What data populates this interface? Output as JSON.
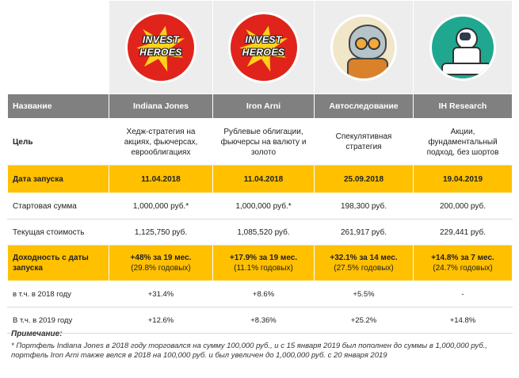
{
  "header": {
    "col_label": "Название",
    "columns": [
      "Indiana Jones",
      "Iron Arni",
      "Автоследование",
      "IH Research"
    ]
  },
  "logos": [
    {
      "icon": "invest-heroes-logo",
      "text_line1": "INVEST",
      "text_line2": "HEROES"
    },
    {
      "icon": "invest-heroes-logo",
      "text_line1": "INVEST",
      "text_line2": "HEROES"
    },
    {
      "icon": "robot-logo"
    },
    {
      "icon": "astronaut-logo"
    }
  ],
  "rows": {
    "goal": {
      "label": "Цель",
      "values": [
        "Хедж-стратегия на акциях, фьючерсах, еврооблигациях",
        "Рублевые облигации, фьючерсы на валюту и золото",
        "Спекулятивная стратегия",
        "Акции, фундаментальный подход, без шортов"
      ]
    },
    "launch": {
      "label": "Дата запуска",
      "values": [
        "11.04.2018",
        "11.04.2018",
        "25.09.2018",
        "19.04.2019"
      ]
    },
    "start": {
      "label": "Стартовая сумма",
      "values": [
        "1,000,000 руб.*",
        "1,000,000 руб.*",
        "198,300 руб.",
        "200,000 руб."
      ]
    },
    "current": {
      "label": "Текущая стоимость",
      "values": [
        "1,125,750 руб.",
        "1,085,520 руб.",
        "261,917 руб.",
        "229,441 руб."
      ]
    },
    "yield": {
      "label": "Доходность с даты запуска",
      "values": [
        {
          "main": "+48% за 19 мес.",
          "sub": "(29.8% годовых)"
        },
        {
          "main": "+17.9% за 19 мес.",
          "sub": "(11.1% годовых)"
        },
        {
          "main": "+32.1% за 14 мес.",
          "sub": "(27.5% годовых)"
        },
        {
          "main": "+14.8% за 7 мес.",
          "sub": "(24.7% годовых)"
        }
      ]
    },
    "y2018": {
      "label": "в т.ч. в 2018 году",
      "values": [
        "+31.4%",
        "+8.6%",
        "+5.5%",
        "-"
      ]
    },
    "y2019": {
      "label": "В т.ч. в 2019 году",
      "values": [
        "+12.6%",
        "+8.36%",
        "+25.2%",
        "+14.8%"
      ]
    }
  },
  "note": {
    "heading": "Примечание:",
    "text": "* Портфель Indiana Jones в 2018 году торговался на сумму 100,000 руб., и с 15 января 2019 был пополнен до суммы в 1,000,000 руб., портфель Iron Arni также велся в 2018 на 100,000 руб. и был увеличен до 1,000,000 руб. с 20 января 2019"
  },
  "colors": {
    "header_bg": "#808080",
    "accent_row": "#ffc000",
    "logo_red": "#e0241b"
  }
}
